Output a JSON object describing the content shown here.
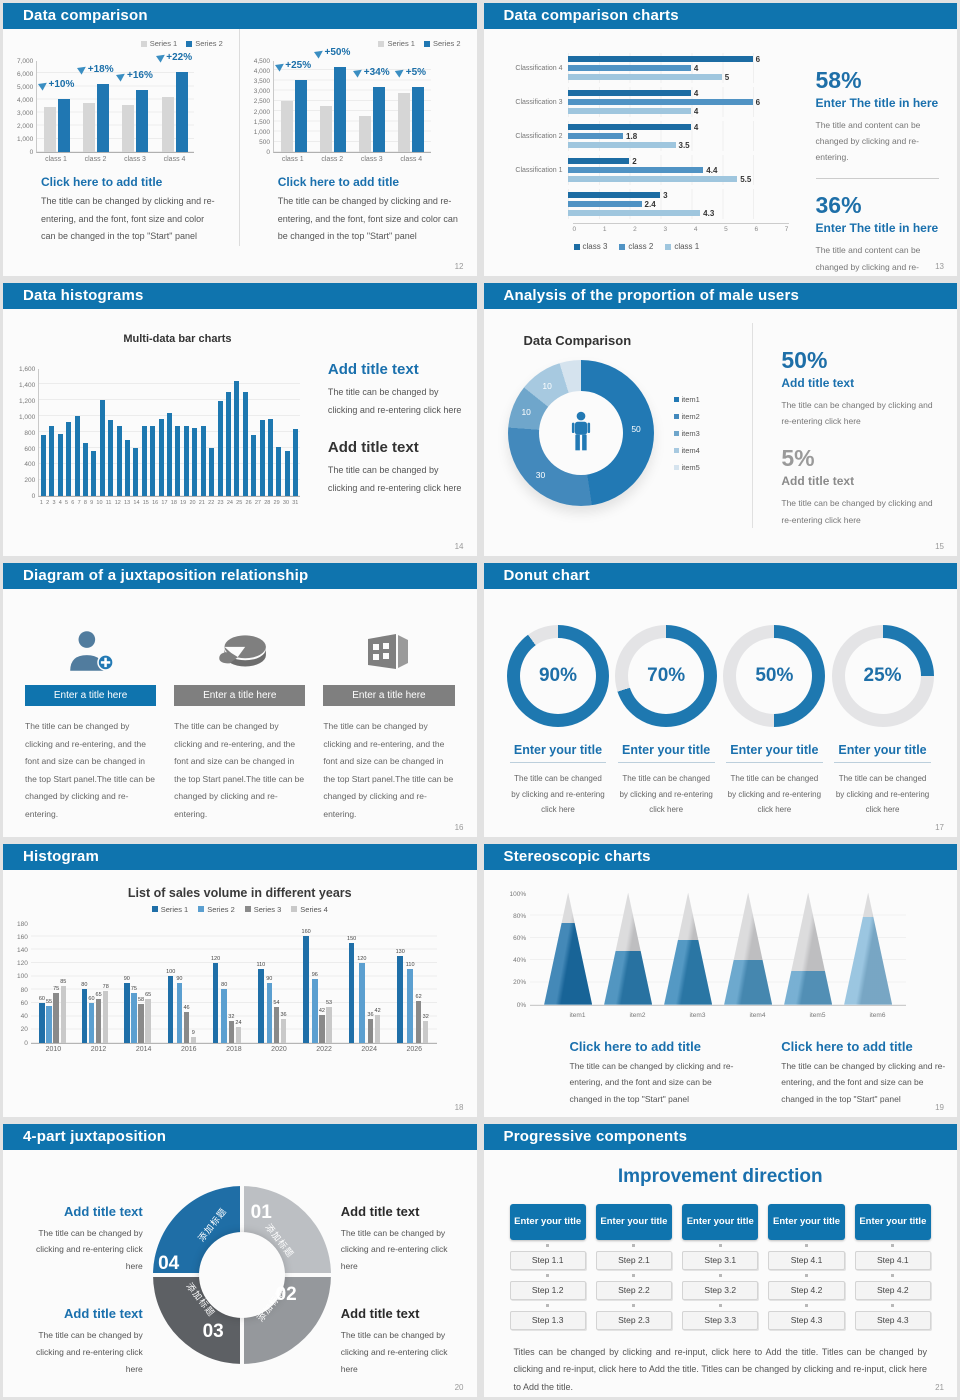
{
  "colors": {
    "header_blue": "#0f74ae",
    "accent_blue": "#1a70ad",
    "number_blue": "#1e6fa8",
    "bar_blue": "#2077b2",
    "bar_gray": "#d6d6d6"
  },
  "slides": [
    {
      "id": "s12",
      "title": "Data comparison",
      "page": "12",
      "blocks": [
        {
          "title": "Click here to add title",
          "body": "The title can be changed by clicking and re-entering, and the font, font size and color can be changed in the top \"Start\" panel"
        },
        {
          "title": "Click here to add title",
          "body": "The title can be changed by clicking and re-entering, and the font, font size and color can be changed in the top \"Start\" panel"
        }
      ]
    },
    {
      "id": "s13",
      "title": "Data comparison charts",
      "page": "13",
      "stats": [
        {
          "value": "58%",
          "title": "Enter The title in here",
          "body": "The title and content can be changed by clicking and re-entering."
        },
        {
          "value": "36%",
          "title": "Enter The title in here",
          "body": "The title and content can be changed by clicking and re-entering."
        }
      ]
    },
    {
      "id": "s14",
      "title": "Data histograms",
      "page": "14",
      "blocks": [
        {
          "title": "Add title text",
          "body": "The title can be changed by clicking and re-entering click here"
        },
        {
          "title": "Add title text",
          "body": "The title can be changed by clicking and re-entering click here"
        }
      ]
    },
    {
      "id": "s15",
      "title": "Analysis of the proportion of male users",
      "page": "15",
      "stats": [
        {
          "value": "50%",
          "title": "Add title text",
          "body": "The title can be changed by clicking and re-entering click here",
          "color": "#1e6fa8"
        },
        {
          "value": "5%",
          "title": "Add title text",
          "body": "The title can be changed by clicking and re-entering click here",
          "color": "#9a9a9a"
        }
      ]
    },
    {
      "id": "s16",
      "title": "Diagram of a juxtaposition relationship",
      "page": "16",
      "items": [
        {
          "icon": "person-add-icon",
          "bar": "Enter a title here",
          "bar_color": "#0f74ae",
          "body": "The title can be changed by clicking and re-entering, and the font and size can be changed in the top Start panel.The title can be changed by clicking and re-entering."
        },
        {
          "icon": "pie-3d-icon",
          "bar": "Enter a title here",
          "bar_color": "#7f7f7f",
          "body": "The title can be changed by clicking and re-entering, and the font and size can be changed in the top Start panel.The title can be changed by clicking and re-entering."
        },
        {
          "icon": "building-icon",
          "bar": "Enter a title here",
          "bar_color": "#7f7f7f",
          "body": "The title can be changed by clicking and re-entering, and the font and size can be changed in the top Start panel.The title can be changed by clicking and re-entering."
        }
      ]
    },
    {
      "id": "s17",
      "title": "Donut chart",
      "page": "17",
      "donut_title": "Enter your title",
      "donut_body": "The title can be changed by clicking and re-entering click here"
    },
    {
      "id": "s18",
      "title": "Histogram",
      "page": "18"
    },
    {
      "id": "s19",
      "title": "Stereoscopic charts",
      "page": "19",
      "blocks": [
        {
          "title": "Click here to add title",
          "body": "The title can be changed by clicking and re-entering, and the font and size can be changed in the top \"Start\" panel"
        },
        {
          "title": "Click here to add title",
          "body": "The title can be changed by clicking and re-entering, and the font and size can be changed in the top \"Start\" panel"
        }
      ]
    },
    {
      "id": "s20",
      "title": "4-part juxtaposition",
      "page": "20",
      "ring": [
        {
          "num": "01",
          "label": "添加标题",
          "color": "#bcbfc3"
        },
        {
          "num": "02",
          "label": "添加标题",
          "color": "#95989c"
        },
        {
          "num": "03",
          "label": "添加标题",
          "color": "#5d6064"
        },
        {
          "num": "04",
          "label": "添加标题",
          "color": "#1f6ea6"
        }
      ],
      "left_blocks": [
        {
          "title": "Add title text",
          "body": "The title can be changed by clicking and re-entering click here"
        },
        {
          "title": "Add title text",
          "body": "The title can be changed by clicking and re-entering click here"
        }
      ],
      "right_blocks": [
        {
          "title": "Add title text",
          "body": "The title can be changed by clicking and re-entering click here"
        },
        {
          "title": "Add title text",
          "body": "The title can be changed by clicking and re-entering click here"
        }
      ]
    },
    {
      "id": "s21",
      "title": "Progressive components",
      "page": "21",
      "heading": "Improvement direction",
      "columns": [
        {
          "header": "Enter your title",
          "steps": [
            "Step 1.1",
            "Step 1.2",
            "Step 1.3"
          ]
        },
        {
          "header": "Enter your title",
          "steps": [
            "Step 2.1",
            "Step 2.2",
            "Step 2.3"
          ]
        },
        {
          "header": "Enter your title",
          "steps": [
            "Step 3.1",
            "Step 3.2",
            "Step 3.3"
          ]
        },
        {
          "header": "Enter your title",
          "steps": [
            "Step 4.1",
            "Step 4.2",
            "Step 4.3"
          ]
        },
        {
          "header": "Enter your title",
          "steps": [
            "Step 4.1",
            "Step 4.2",
            "Step 4.3"
          ]
        }
      ],
      "footer": "Titles can be changed by clicking and re-input, click here to Add the title. Titles can be changed by clicking and re-input, click here to Add the title. Titles can be changed by clicking and re-input, click here to Add the title."
    }
  ],
  "chart_data": [
    {
      "id": "s12a",
      "type": "bar",
      "categories": [
        "class 1",
        "class 2",
        "class 3",
        "class 4"
      ],
      "series": [
        {
          "name": "Series 1",
          "color": "#d6d6d6",
          "values": [
            3400,
            3700,
            3600,
            4200
          ]
        },
        {
          "name": "Series 2",
          "color": "#2077b2",
          "values": [
            4000,
            5200,
            4700,
            6100
          ]
        }
      ],
      "annotations": [
        "+10%",
        "+18%",
        "+16%",
        "+22%"
      ],
      "ylim": [
        0,
        7000
      ],
      "ystep": 1000,
      "grid": true,
      "legend_position": "top-right"
    },
    {
      "id": "s12b",
      "type": "bar",
      "categories": [
        "class 1",
        "class 2",
        "class 3",
        "class 4"
      ],
      "series": [
        {
          "name": "Series 1",
          "color": "#d6d6d6",
          "values": [
            2500,
            2250,
            1750,
            2900
          ]
        },
        {
          "name": "Series 2",
          "color": "#2077b2",
          "values": [
            3500,
            4150,
            3200,
            3200
          ]
        }
      ],
      "annotations": [
        "+25%",
        "+50%",
        "+34%",
        "+5%"
      ],
      "ylim": [
        0,
        4500
      ],
      "ystep": 500,
      "grid": true,
      "legend_position": "top-right"
    },
    {
      "id": "s13",
      "type": "bar-horizontal",
      "groups": [
        "Classification 4",
        "Classification 3",
        "Classification 2",
        "Classification 1",
        ""
      ],
      "series": [
        {
          "name": "class 3",
          "color": "#1c6ca3",
          "values": [
            6,
            4,
            4,
            2,
            3
          ]
        },
        {
          "name": "class 2",
          "color": "#5093c4",
          "values": [
            4,
            6,
            1.8,
            4.4,
            2.4
          ]
        },
        {
          "name": "class 1",
          "color": "#9fc6de",
          "values": [
            5,
            4,
            3.5,
            5.5,
            4.3
          ]
        }
      ],
      "xlim": [
        0,
        7
      ],
      "xticks": [
        0,
        1,
        2,
        3,
        4,
        5,
        6,
        7
      ],
      "legend_position": "bottom"
    },
    {
      "id": "s14",
      "type": "bar",
      "title": "Multi-data bar charts",
      "x": [
        1,
        2,
        3,
        4,
        5,
        6,
        7,
        8,
        9,
        10,
        11,
        12,
        13,
        14,
        15,
        16,
        17,
        18,
        19,
        20,
        21,
        22,
        23,
        24,
        25,
        26,
        27,
        28,
        29,
        30,
        31
      ],
      "values": [
        770,
        880,
        780,
        930,
        1000,
        670,
        570,
        1200,
        955,
        880,
        700,
        600,
        880,
        880,
        960,
        1040,
        880,
        880,
        850,
        880,
        600,
        1190,
        1300,
        1440,
        1300,
        770,
        950,
        960,
        620,
        560,
        840
      ],
      "color": "#1e78b0",
      "ylim": [
        0,
        1600
      ],
      "ystep": 200,
      "grid": true
    },
    {
      "id": "s15",
      "type": "donut",
      "title": "Data Comparison",
      "labels": [
        "item1",
        "item2",
        "item3",
        "item4",
        "item5"
      ],
      "values": [
        50,
        30,
        10,
        10,
        5
      ],
      "shown_labels": [
        "50",
        "30",
        "10",
        "10",
        ""
      ],
      "colors": [
        "#2279b4",
        "#4389bc",
        "#6fa6cb",
        "#a7c9e0",
        "#d5e3ee"
      ],
      "legend_position": "right"
    },
    {
      "id": "s17",
      "type": "donut",
      "values": [
        90,
        70,
        50,
        25
      ],
      "unit": "%",
      "color": "#1e78b0",
      "track_color": "#e4e4e6"
    },
    {
      "id": "s18",
      "type": "bar",
      "title": "List of sales volume in different years",
      "categories": [
        "2010",
        "2012",
        "2014",
        "2016",
        "2018",
        "2020",
        "2022",
        "2024",
        "2026"
      ],
      "series": [
        {
          "name": "Series 1",
          "color": "#1f6fa8",
          "values": [
            60,
            80,
            90,
            100,
            120,
            110,
            160,
            150,
            130
          ]
        },
        {
          "name": "Series 2",
          "color": "#5b9fd0",
          "values": [
            55,
            60,
            75,
            90,
            80,
            90,
            96,
            120,
            110
          ]
        },
        {
          "name": "Series 3",
          "color": "#8a8a8a",
          "values": [
            75,
            65,
            58,
            46,
            32,
            54,
            42,
            36,
            62
          ]
        },
        {
          "name": "Series 4",
          "color": "#c9c9c9",
          "values": [
            85,
            78,
            65,
            9,
            24,
            36,
            53,
            42,
            32
          ]
        }
      ],
      "ylim": [
        0,
        180
      ],
      "ystep": 20,
      "grid": true,
      "legend_position": "top",
      "data_labels": true
    },
    {
      "id": "s19",
      "type": "pyramid",
      "categories": [
        "item1",
        "item2",
        "item3",
        "item4",
        "item5",
        "item6"
      ],
      "values": [
        73,
        48,
        58,
        40,
        30,
        78
      ],
      "colors": [
        "#1b6fa8",
        "#2c7fb3",
        "#2f83b7",
        "#4d96c3",
        "#5b9fc9",
        "#85b9da"
      ],
      "track_color": "#d4d4d6",
      "ylim": [
        0,
        100
      ],
      "yticks": [
        "100%",
        "80%",
        "60%",
        "40%",
        "20%",
        "0%"
      ]
    }
  ]
}
